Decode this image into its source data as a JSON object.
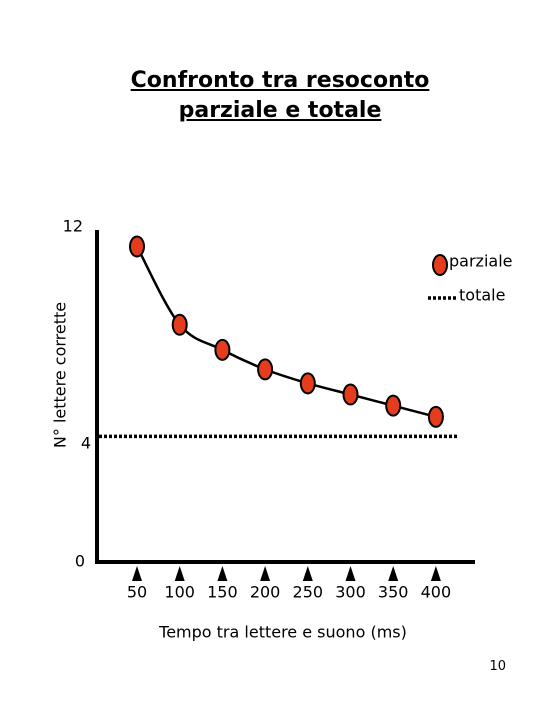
{
  "page": {
    "number": "10"
  },
  "chart_data": {
    "type": "line",
    "title": [
      "Confronto tra resoconto",
      "parziale e totale"
    ],
    "xlabel": "Tempo tra lettere e suono (ms)",
    "ylabel": "N° lettere corrette",
    "categories": [
      "50",
      "100",
      "150",
      "200",
      "250",
      "300",
      "350",
      "400"
    ],
    "yticks": [
      "0",
      "4",
      "12"
    ],
    "ylim": [
      0,
      12
    ],
    "grid": false,
    "legend_placement": "top-right",
    "series": [
      {
        "name": "parziale",
        "kind": "line-with-markers",
        "values": [
          11.3,
          8.5,
          7.6,
          6.9,
          6.4,
          6.0,
          5.6,
          5.2
        ],
        "marker_color": "#e63c1e",
        "line_color": "#000000"
      },
      {
        "name": "totale",
        "kind": "dotted-reference",
        "value": 4.5,
        "line_color": "#000000"
      }
    ]
  }
}
